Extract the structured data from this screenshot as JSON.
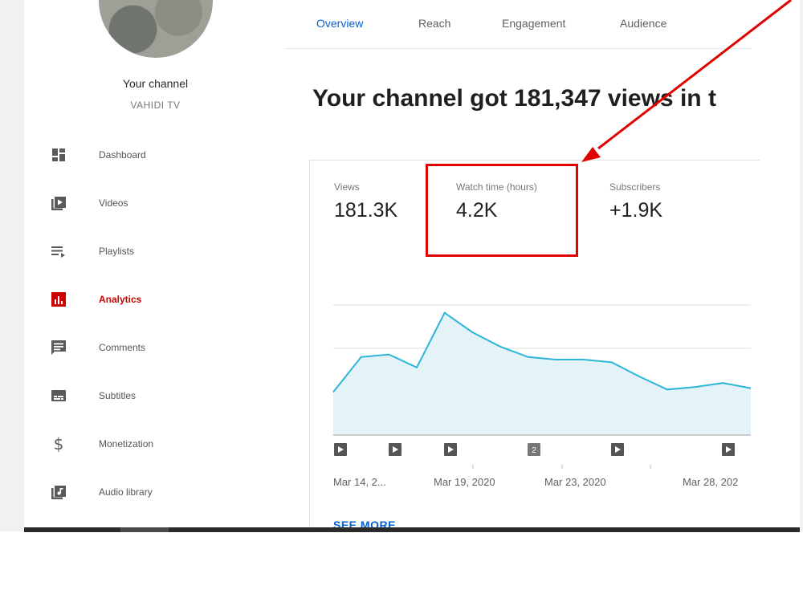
{
  "sidebar": {
    "channel_title": "Your channel",
    "channel_name": "VAHIDI TV",
    "items": [
      {
        "label": "Dashboard",
        "icon": "dashboard-icon"
      },
      {
        "label": "Videos",
        "icon": "videos-icon"
      },
      {
        "label": "Playlists",
        "icon": "playlists-icon"
      },
      {
        "label": "Analytics",
        "icon": "analytics-icon",
        "active": true
      },
      {
        "label": "Comments",
        "icon": "comments-icon"
      },
      {
        "label": "Subtitles",
        "icon": "subtitles-icon"
      },
      {
        "label": "Monetization",
        "icon": "dollar-icon"
      },
      {
        "label": "Audio library",
        "icon": "audio-library-icon"
      }
    ]
  },
  "tabs": [
    {
      "label": "Overview",
      "active": true
    },
    {
      "label": "Reach"
    },
    {
      "label": "Engagement"
    },
    {
      "label": "Audience"
    }
  ],
  "headline": "Your channel got 181,347 views in t",
  "metrics": [
    {
      "label": "Views",
      "value": "181.3K"
    },
    {
      "label": "Watch time (hours)",
      "value": "4.2K"
    },
    {
      "label": "Subscribers",
      "value": "+1.9K"
    }
  ],
  "chart_data": {
    "type": "area",
    "x_ticks": [
      "Mar 14, 2...",
      "Mar 19, 2020",
      "Mar 23, 2020",
      "Mar 28, 202"
    ],
    "values": [
      33,
      60,
      62,
      52,
      94,
      79,
      68,
      60,
      58,
      58,
      56,
      45,
      35,
      37,
      40,
      36
    ],
    "ylim": [
      0,
      100
    ],
    "grid": true,
    "markers": [
      {
        "type": "play"
      },
      {
        "type": "play"
      },
      {
        "type": "play"
      },
      {
        "type": "count",
        "label": "2"
      },
      {
        "type": "play"
      },
      {
        "type": "play"
      }
    ],
    "colors": {
      "line": "#2bb5d8",
      "fill": "#e3f3f8"
    }
  },
  "see_more": "SEE MORE",
  "colors": {
    "accent": "#065fd4",
    "active": "#cc0000",
    "annotation": "#e00000"
  }
}
